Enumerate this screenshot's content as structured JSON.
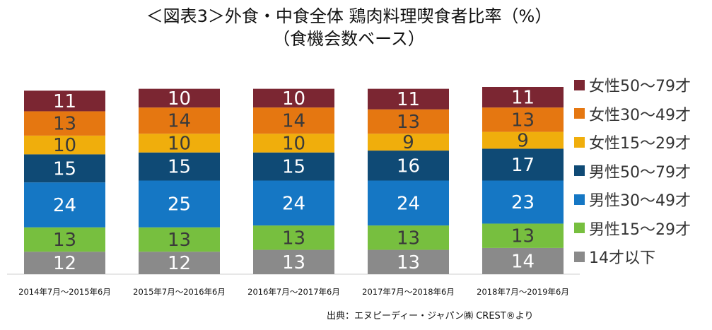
{
  "title_line1": "＜図表3＞外食・中食全体 鶏肉料理喫食者比率（%）",
  "title_line2": "（食機会数ベース）",
  "source": "出典：エヌピーディー・ジャパン㈱ CREST®より",
  "colors": {
    "女性50～79才": "#7b2632",
    "女性30～49才": "#e57711",
    "女性15～29才": "#f0ae0c",
    "男性50～79才": "#0f4a75",
    "男性30～49才": "#1577c4",
    "男性15～29才": "#77bf3f",
    "14才以下": "#8a8a8a"
  },
  "legend": [
    "女性50～79才",
    "女性30～49才",
    "女性15～29才",
    "男性50～79才",
    "男性30～49才",
    "男性15～29才",
    "14才以下"
  ],
  "chart_data": {
    "type": "bar",
    "stacked": true,
    "categories": [
      "2014年7月～2015年6月",
      "2015年7月～2016年6月",
      "2016年7月～2017年6月",
      "2017年7月～2018年6月",
      "2018年7月～2019年6月"
    ],
    "series": [
      {
        "name": "14才以下",
        "values": [
          12,
          12,
          13,
          13,
          14
        ]
      },
      {
        "name": "男性15～29才",
        "values": [
          13,
          13,
          13,
          13,
          13
        ]
      },
      {
        "name": "男性30～49才",
        "values": [
          24,
          25,
          24,
          24,
          23
        ]
      },
      {
        "name": "男性50～79才",
        "values": [
          15,
          15,
          15,
          16,
          17
        ]
      },
      {
        "name": "女性15～29才",
        "values": [
          10,
          10,
          10,
          9,
          9
        ]
      },
      {
        "name": "女性30～49才",
        "values": [
          13,
          14,
          14,
          13,
          13
        ]
      },
      {
        "name": "女性50～79才",
        "values": [
          11,
          10,
          10,
          11,
          11
        ]
      }
    ],
    "ylim": [
      0,
      100
    ],
    "grid": false,
    "legend_position": "right"
  }
}
